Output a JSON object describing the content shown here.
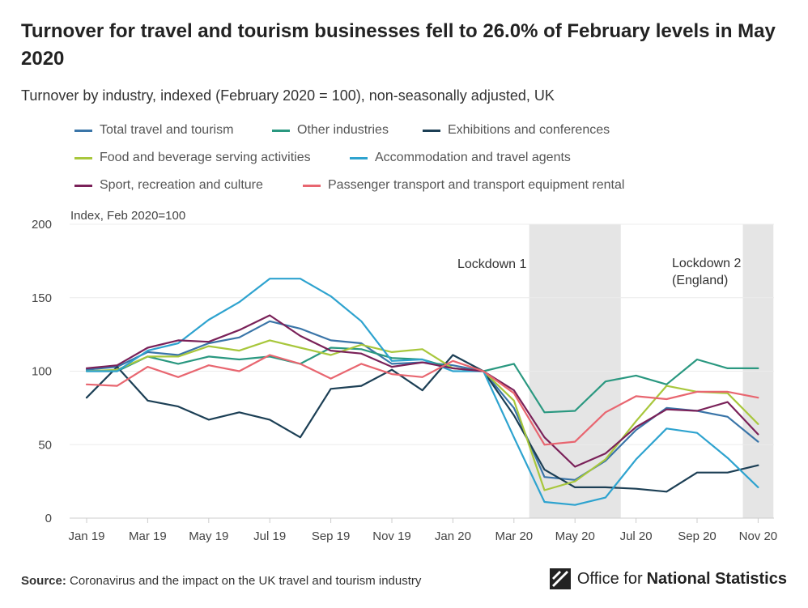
{
  "title": "Turnover for travel and tourism businesses fell to 26.0% of February levels in May 2020",
  "subtitle": "Turnover by industry, indexed (February 2020 = 100), non-seasonally adjusted, UK",
  "source": {
    "label": "Source:",
    "text": "Coronavirus and the impact on the UK travel and tourism industry"
  },
  "logo": {
    "prefix": "Office for",
    "bold": "National Statistics"
  },
  "chart_data": {
    "type": "line",
    "ylabel": "Index, Feb 2020=100",
    "ylim": [
      0,
      200
    ],
    "yticks": [
      0,
      50,
      100,
      150,
      200
    ],
    "grid": true,
    "x": [
      "Jan 19",
      "Feb 19",
      "Mar 19",
      "Apr 19",
      "May 19",
      "Jun 19",
      "Jul 19",
      "Aug 19",
      "Sep 19",
      "Oct 19",
      "Nov 19",
      "Dec 19",
      "Jan 20",
      "Feb 20",
      "Mar 20",
      "Apr 20",
      "May 20",
      "Jun 20",
      "Jul 20",
      "Aug 20",
      "Sep 20",
      "Oct 20",
      "Nov 20"
    ],
    "xtick_labels": [
      "Jan 19",
      "Mar 19",
      "May 19",
      "Jul 19",
      "Sep 19",
      "Nov 19",
      "Jan 20",
      "Mar 20",
      "May 20",
      "Jul 20",
      "Sep 20",
      "Nov 20"
    ],
    "legend_position": "top",
    "shaded_periods": [
      {
        "label": [
          "Lockdown 1"
        ],
        "start": "Apr 20",
        "end": "Jun 20"
      },
      {
        "label": [
          "Lockdown 2",
          "(England)"
        ],
        "start": "Nov 20",
        "end": "Nov 20"
      }
    ],
    "series": [
      {
        "name": "Total travel and tourism",
        "color": "#3a75a8",
        "values": [
          101,
          103,
          113,
          111,
          119,
          123,
          134,
          129,
          121,
          119,
          105,
          106,
          104,
          100,
          75,
          28,
          26,
          39,
          60,
          75,
          73,
          69,
          52
        ]
      },
      {
        "name": "Other industries",
        "color": "#2a9880",
        "values": [
          100,
          100,
          110,
          105,
          110,
          108,
          110,
          105,
          116,
          115,
          109,
          108,
          102,
          100,
          105,
          72,
          73,
          93,
          97,
          91,
          108,
          102,
          102
        ]
      },
      {
        "name": "Exhibitions and conferences",
        "color": "#1c3f55",
        "values": [
          82,
          103,
          80,
          76,
          67,
          72,
          67,
          55,
          88,
          90,
          101,
          87,
          111,
          100,
          70,
          33,
          21,
          21,
          20,
          18,
          31,
          31,
          36
        ]
      },
      {
        "name": "Food and beverage serving activities",
        "color": "#a8c73c",
        "values": [
          100,
          101,
          110,
          110,
          117,
          114,
          121,
          116,
          111,
          118,
          113,
          115,
          102,
          100,
          80,
          19,
          25,
          40,
          66,
          90,
          86,
          85,
          64
        ]
      },
      {
        "name": "Accommodation and travel agents",
        "color": "#2ea3cf",
        "values": [
          100,
          100,
          114,
          119,
          135,
          147,
          163,
          163,
          151,
          134,
          107,
          108,
          100,
          100,
          55,
          11,
          9,
          14,
          40,
          61,
          58,
          41,
          21
        ]
      },
      {
        "name": "Sport, recreation and culture",
        "color": "#7a2159",
        "values": [
          102,
          104,
          116,
          121,
          120,
          128,
          138,
          124,
          114,
          112,
          103,
          106,
          102,
          100,
          87,
          55,
          35,
          44,
          62,
          74,
          73,
          79,
          57
        ]
      },
      {
        "name": "Passenger transport and transport equipment rental",
        "color": "#e86670",
        "values": [
          91,
          90,
          103,
          96,
          104,
          100,
          111,
          105,
          95,
          105,
          98,
          96,
          107,
          100,
          85,
          50,
          52,
          72,
          83,
          81,
          86,
          86,
          82
        ]
      }
    ]
  }
}
